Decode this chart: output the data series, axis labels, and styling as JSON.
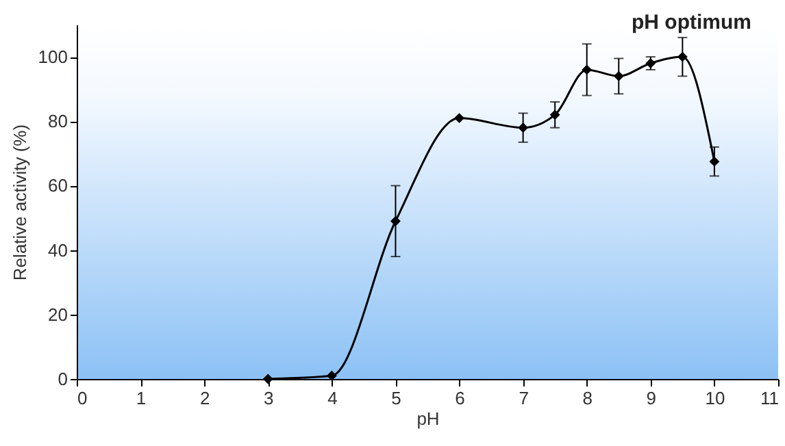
{
  "chart_data": {
    "type": "line",
    "title": "pH optimum",
    "xlabel": "pH",
    "ylabel": "Relative activity (%)",
    "x": [
      3,
      4,
      5,
      6,
      7,
      7.5,
      8,
      8.5,
      9,
      9.5,
      10
    ],
    "series": [
      {
        "color": "#000000",
        "values": [
          0,
          1,
          49,
          81,
          78,
          82,
          96,
          94,
          98,
          100,
          67.5
        ],
        "errors": [
          null,
          null,
          11,
          null,
          4.5,
          4,
          8,
          5.5,
          2,
          6,
          4.5
        ]
      }
    ],
    "xlim": [
      0,
      11
    ],
    "xticks": [
      0,
      1,
      2,
      3,
      4,
      5,
      6,
      7,
      8,
      9,
      10,
      11
    ],
    "ylim": [
      0,
      110
    ],
    "yticks": [
      0,
      20,
      40,
      60,
      80,
      100
    ],
    "grid": false,
    "marker": "diamond",
    "line_style": "solid"
  }
}
